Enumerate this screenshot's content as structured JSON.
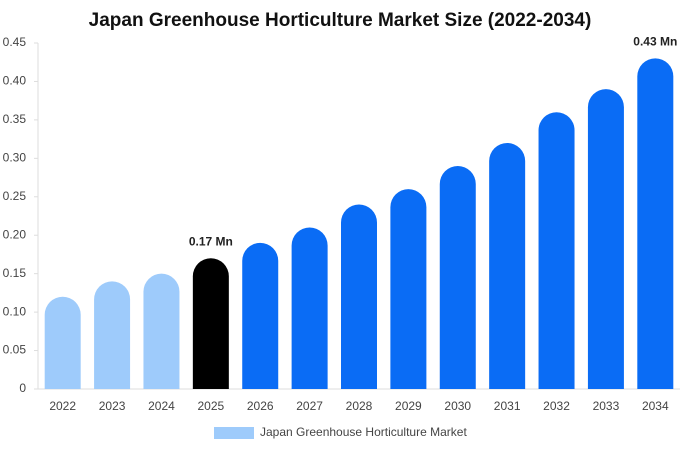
{
  "chart_data": {
    "type": "bar",
    "title": "Japan Greenhouse Horticulture Market Size (2022-2034)",
    "categories": [
      "2022",
      "2023",
      "2024",
      "2025",
      "2026",
      "2027",
      "2028",
      "2029",
      "2030",
      "2031",
      "2032",
      "2033",
      "2034"
    ],
    "series": [
      {
        "name": "Japan Greenhouse Horticulture Market",
        "color": "#9ecbfb",
        "values": [
          0.12,
          0.14,
          0.15,
          0.17,
          0.19,
          0.21,
          0.24,
          0.26,
          0.29,
          0.32,
          0.36,
          0.39,
          0.43
        ],
        "value_labels": [
          null,
          null,
          null,
          "0.17 Mn",
          null,
          null,
          null,
          null,
          null,
          null,
          null,
          null,
          "0.43 Mn"
        ],
        "colors": [
          "#9ecbfb",
          "#9ecbfb",
          "#9ecbfb",
          "#000000",
          "#0a6cf5",
          "#0a6cf5",
          "#0a6cf5",
          "#0a6cf5",
          "#0a6cf5",
          "#0a6cf5",
          "#0a6cf5",
          "#0a6cf5",
          "#0a6cf5"
        ]
      }
    ],
    "ylim": [
      0,
      0.45
    ],
    "yticks": [
      0,
      0.05,
      {
        "value": 0.1,
        "label": "0.10"
      },
      0.15,
      {
        "value": 0.2,
        "label": "0.20"
      },
      0.25,
      {
        "value": 0.3,
        "label": "0.30"
      },
      0.35,
      {
        "value": 0.4,
        "label": "0.40"
      },
      0.45
    ],
    "grid": false
  }
}
